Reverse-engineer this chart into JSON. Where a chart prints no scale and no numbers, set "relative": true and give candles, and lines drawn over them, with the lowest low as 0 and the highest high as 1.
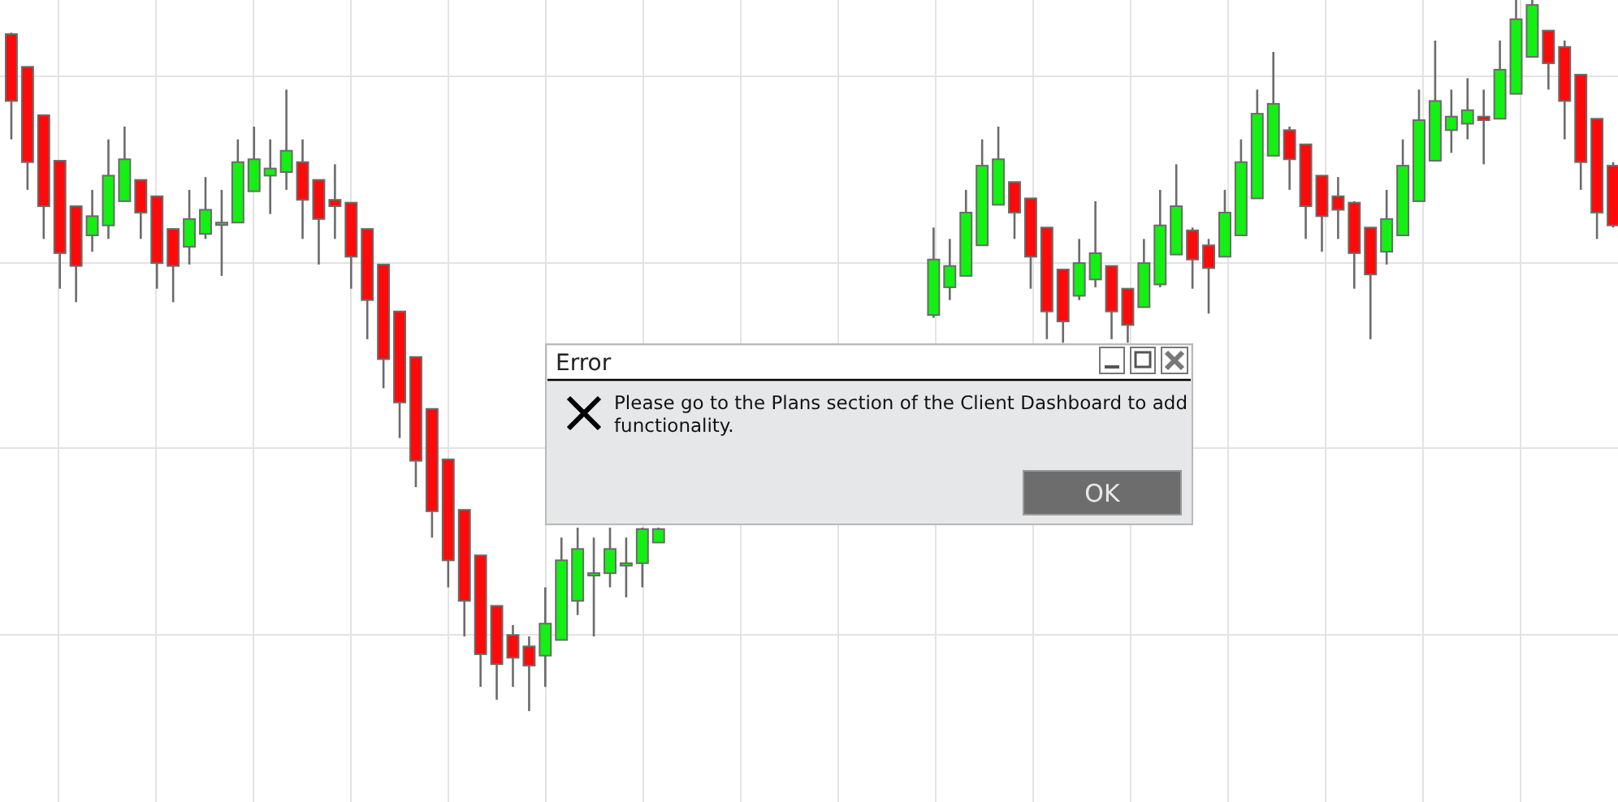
{
  "chart_data": {
    "type": "candlestick",
    "relative": true,
    "grid": true,
    "categories": [
      null,
      null,
      null,
      null,
      null,
      null,
      null,
      null,
      null,
      null,
      null,
      null,
      null,
      null,
      null,
      null,
      null,
      null,
      null,
      null,
      null,
      null,
      null,
      null,
      null,
      null,
      null,
      null,
      null,
      null,
      null,
      null,
      null,
      null,
      null,
      null,
      null,
      null,
      null,
      null,
      null,
      null,
      null,
      null,
      null,
      null,
      null,
      null,
      null,
      null,
      null,
      null,
      null,
      null,
      null,
      null,
      null,
      null,
      null,
      null,
      null,
      null,
      null,
      null,
      null,
      null,
      null,
      null,
      null,
      null,
      null,
      null,
      null,
      null,
      null,
      null,
      null,
      null,
      null,
      null,
      null,
      null,
      null,
      null,
      null,
      null,
      null,
      null,
      null,
      null,
      null,
      null,
      null,
      null,
      null,
      null,
      null,
      null,
      null,
      null
    ],
    "ohlc": [
      [
        0.952,
        0.954,
        0.804,
        0.858
      ],
      [
        0.906,
        0.906,
        0.733,
        0.772
      ],
      [
        0.838,
        0.838,
        0.664,
        0.71
      ],
      [
        0.774,
        0.774,
        0.594,
        0.644
      ],
      [
        0.71,
        0.71,
        0.575,
        0.626
      ],
      [
        0.669,
        0.733,
        0.646,
        0.696
      ],
      [
        0.683,
        0.804,
        0.664,
        0.753
      ],
      [
        0.717,
        0.822,
        0.717,
        0.776
      ],
      [
        0.747,
        0.747,
        0.664,
        0.701
      ],
      [
        0.724,
        0.724,
        0.594,
        0.63
      ],
      [
        0.678,
        0.678,
        0.575,
        0.626
      ],
      [
        0.653,
        0.733,
        0.628,
        0.692
      ],
      [
        0.671,
        0.751,
        0.664,
        0.705
      ],
      [
        0.687,
        0.733,
        0.612,
        0.687
      ],
      [
        0.687,
        0.804,
        0.687,
        0.772
      ],
      [
        0.731,
        0.822,
        0.731,
        0.776
      ],
      [
        0.753,
        0.804,
        0.699,
        0.763
      ],
      [
        0.758,
        0.874,
        0.733,
        0.788
      ],
      [
        0.772,
        0.804,
        0.664,
        0.719
      ],
      [
        0.747,
        0.747,
        0.628,
        0.692
      ],
      [
        0.719,
        0.769,
        0.664,
        0.71
      ],
      [
        0.715,
        0.715,
        0.594,
        0.639
      ],
      [
        0.678,
        0.678,
        0.523,
        0.578
      ],
      [
        0.628,
        0.628,
        0.454,
        0.495
      ],
      [
        0.562,
        0.562,
        0.384,
        0.434
      ],
      [
        0.498,
        0.498,
        0.315,
        0.352
      ],
      [
        0.425,
        0.425,
        0.244,
        0.281
      ],
      [
        0.354,
        0.354,
        0.174,
        0.212
      ],
      [
        0.283,
        0.283,
        0.105,
        0.155
      ],
      [
        0.219,
        0.219,
        0.034,
        0.08
      ],
      [
        0.148,
        0.148,
        0.016,
        0.066
      ],
      [
        0.107,
        0.121,
        0.034,
        0.075
      ],
      [
        0.091,
        0.105,
        0,
        0.064
      ],
      [
        0.078,
        0.174,
        0.034,
        0.123
      ],
      [
        0.1,
        0.244,
        0.1,
        0.212
      ],
      [
        0.155,
        0.258,
        0.135,
        0.228
      ],
      [
        0.194,
        0.244,
        0.105,
        0.194
      ],
      [
        0.194,
        0.258,
        0.174,
        0.228
      ],
      [
        0.208,
        0.244,
        0.16,
        0.208
      ],
      [
        0.208,
        0.258,
        0.174,
        0.256
      ],
      [
        0.237,
        0.258,
        0.237,
        0.256
      ],
      null,
      null,
      null,
      null,
      null,
      null,
      null,
      null,
      null,
      null,
      null,
      null,
      null,
      null,
      null,
      null,
      [
        0.557,
        0.68,
        0.553,
        0.635
      ],
      [
        0.596,
        0.664,
        0.578,
        0.626
      ],
      [
        0.612,
        0.733,
        0.612,
        0.701
      ],
      [
        0.655,
        0.804,
        0.655,
        0.767
      ],
      [
        0.712,
        0.822,
        0.712,
        0.776
      ],
      [
        0.744,
        0.744,
        0.664,
        0.701
      ],
      [
        0.721,
        0.721,
        0.594,
        0.639
      ],
      [
        0.68,
        0.68,
        0.523,
        0.562
      ],
      [
        0.621,
        0.621,
        0.518,
        0.548
      ],
      [
        0.584,
        0.664,
        0.578,
        0.63
      ],
      [
        0.607,
        0.717,
        0.596,
        0.644
      ],
      [
        0.626,
        0.626,
        0.523,
        0.562
      ],
      [
        0.594,
        0.594,
        0.518,
        0.543
      ],
      [
        0.568,
        0.664,
        0.568,
        0.63
      ],
      [
        0.6,
        0.733,
        0.596,
        0.683
      ],
      [
        0.642,
        0.769,
        0.642,
        0.71
      ],
      [
        0.676,
        0.68,
        0.594,
        0.635
      ],
      [
        0.655,
        0.664,
        0.559,
        0.623
      ],
      [
        0.639,
        0.733,
        0.639,
        0.701
      ],
      [
        0.669,
        0.804,
        0.669,
        0.772
      ],
      [
        0.721,
        0.874,
        0.721,
        0.84
      ],
      [
        0.781,
        0.927,
        0.781,
        0.854
      ],
      [
        0.817,
        0.822,
        0.733,
        0.776
      ],
      [
        0.797,
        0.797,
        0.664,
        0.71
      ],
      [
        0.753,
        0.753,
        0.646,
        0.696
      ],
      [
        0.724,
        0.751,
        0.664,
        0.705
      ],
      [
        0.715,
        0.717,
        0.594,
        0.644
      ],
      [
        0.68,
        0.68,
        0.523,
        0.614
      ],
      [
        0.646,
        0.733,
        0.628,
        0.692
      ],
      [
        0.669,
        0.804,
        0.669,
        0.767
      ],
      [
        0.717,
        0.874,
        0.717,
        0.831
      ],
      [
        0.774,
        0.943,
        0.774,
        0.858
      ],
      [
        0.817,
        0.874,
        0.785,
        0.836
      ],
      [
        0.826,
        0.89,
        0.804,
        0.845
      ],
      [
        0.836,
        0.874,
        0.769,
        0.831
      ],
      [
        0.833,
        0.943,
        0.833,
        0.902
      ],
      [
        0.868,
        1,
        0.868,
        0.973
      ],
      [
        0.92,
        1,
        0.92,
        0.993
      ],
      [
        0.957,
        0.957,
        0.874,
        0.911
      ],
      [
        0.934,
        0.943,
        0.804,
        0.858
      ],
      [
        0.895,
        0.895,
        0.733,
        0.772
      ],
      [
        0.833,
        0.833,
        0.664,
        0.701
      ],
      [
        0.767,
        0.772,
        0.68,
        0.683
      ]
    ],
    "annotations": [
      "Error",
      "Please go to the Plans section of the Client Dashboard to add functionality.",
      "OK"
    ]
  }
}
